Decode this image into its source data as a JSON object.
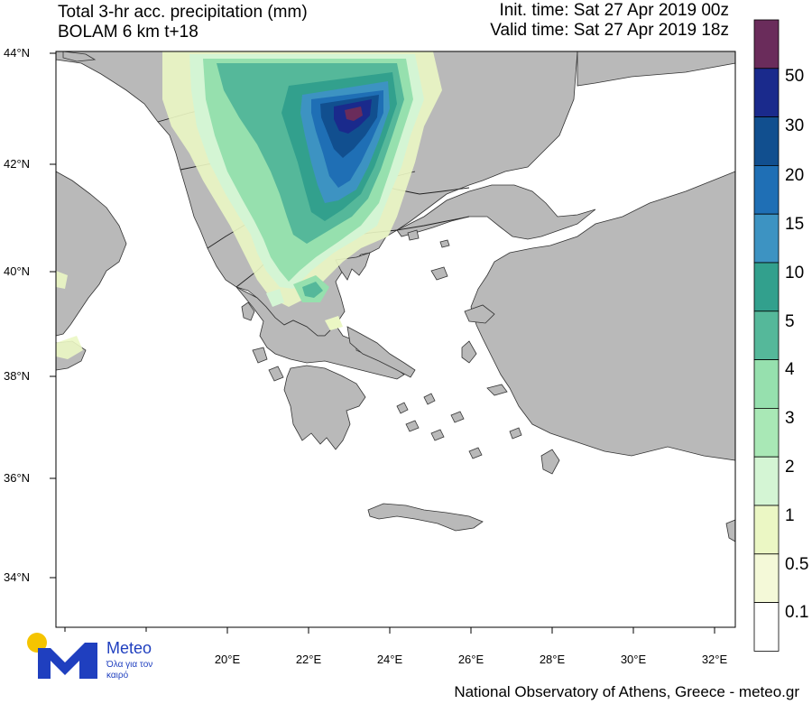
{
  "header": {
    "title_line1": "Total 3-hr acc. precipitation (mm)",
    "title_line2": "BOLAM 6 km t+18",
    "init_time": "Init. time: Sat 27 Apr 2019 00z",
    "valid_time": "Valid time: Sat 27 Apr 2019 18z"
  },
  "map": {
    "sea_color": "#ffffff",
    "land_color": "#b9b9b9",
    "latitude_labels": [
      "44°N",
      "42°N",
      "40°N",
      "38°N",
      "36°N",
      "34°N"
    ],
    "longitude_labels": [
      "20°E",
      "22°E",
      "24°E",
      "26°E",
      "28°E",
      "30°E",
      "32°E"
    ]
  },
  "colorbar": {
    "labels": [
      "50",
      "30",
      "20",
      "15",
      "10",
      "5",
      "4",
      "3",
      "2",
      "1",
      "0.5",
      "0.1"
    ],
    "colors": [
      "#6a2c5b",
      "#1a2a8c",
      "#114f8f",
      "#1f6fb5",
      "#3d93c2",
      "#32a08d",
      "#55b89a",
      "#96e0ae",
      "#a9e8b6",
      "#d4f5d4",
      "#ebf7c4",
      "#f4f9d8",
      "#ffffff"
    ]
  },
  "logo": {
    "name": "Meteo",
    "tagline": "Όλα για τον καιρό"
  },
  "footer": "National Observatory of Athens, Greece - meteo.gr"
}
